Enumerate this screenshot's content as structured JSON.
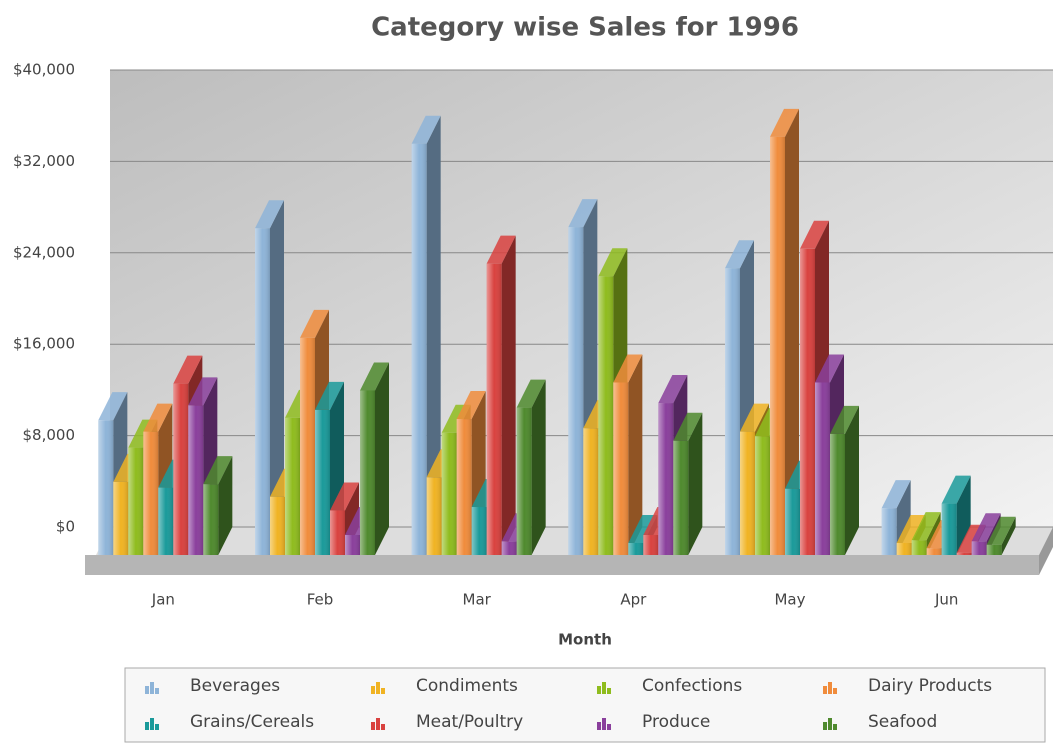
{
  "chart_data": {
    "type": "bar3d",
    "title": "Category wise Sales for 1996",
    "x_label": "Month",
    "categories": [
      "Jan",
      "Feb",
      "Mar",
      "Apr",
      "May",
      "Jun"
    ],
    "series": [
      {
        "name": "Beverages",
        "color": "#8eb4d8",
        "values": [
          11800,
          28600,
          36000,
          28700,
          25100,
          4100
        ]
      },
      {
        "name": "Condiments",
        "color": "#f0b323",
        "values": [
          6400,
          5100,
          6800,
          11100,
          10800,
          1050
        ]
      },
      {
        "name": "Confections",
        "color": "#8fbc1e",
        "values": [
          9400,
          12000,
          10700,
          24400,
          10400,
          1300
        ]
      },
      {
        "name": "Dairy Products",
        "color": "#f08c3c",
        "values": [
          10800,
          19000,
          11900,
          15100,
          36600,
          600
        ]
      },
      {
        "name": "Grains/Cereals",
        "color": "#1a9a9a",
        "values": [
          5900,
          12700,
          4200,
          1050,
          5800,
          4500
        ]
      },
      {
        "name": "Meat/Poultry",
        "color": "#d9423f",
        "values": [
          15000,
          3900,
          25500,
          1750,
          26800,
          200
        ]
      },
      {
        "name": "Produce",
        "color": "#8a3f9c",
        "values": [
          13100,
          1750,
          1200,
          13300,
          15100,
          1200
        ]
      },
      {
        "name": "Seafood",
        "color": "#4f8a2e",
        "values": [
          6200,
          14400,
          12900,
          10000,
          10600,
          900
        ]
      }
    ],
    "ylim": [
      0,
      40000
    ],
    "yticks": [
      {
        "value": 0,
        "label": "$0"
      },
      {
        "value": 8000,
        "label": "$8,000"
      },
      {
        "value": 16000,
        "label": "$16,000"
      },
      {
        "value": 24000,
        "label": "$24,000"
      },
      {
        "value": 32000,
        "label": "$32,000"
      },
      {
        "value": 40000,
        "label": "$40,000"
      }
    ],
    "grid": true
  }
}
